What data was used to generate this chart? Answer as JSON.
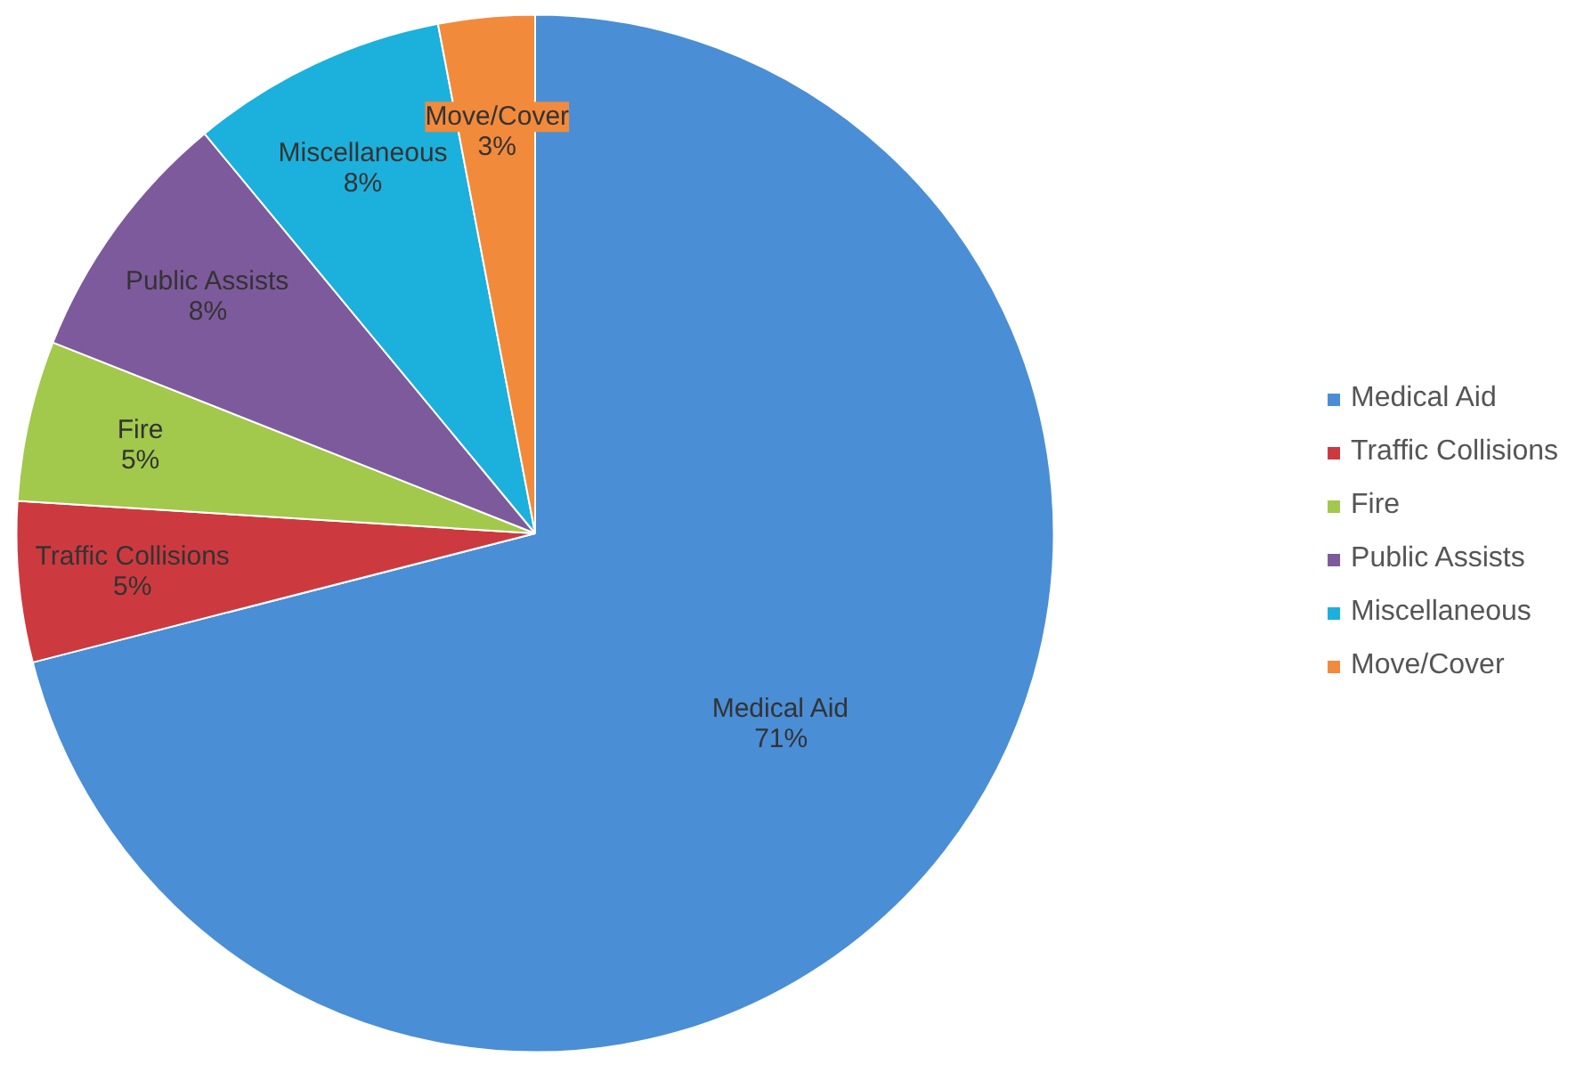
{
  "chart_data": {
    "type": "pie",
    "categories": [
      "Medical Aid",
      "Traffic Collisions",
      "Fire",
      "Public Assists",
      "Miscellaneous",
      "Move/Cover"
    ],
    "values": [
      71,
      5,
      5,
      8,
      8,
      3
    ],
    "colors": [
      "#4a8ed6",
      "#cc3a40",
      "#a2c84c",
      "#7d5a9c",
      "#1cb0dc",
      "#f28a3c"
    ],
    "value_labels": [
      "71%",
      "5%",
      "5%",
      "8%",
      "8%",
      "3%"
    ],
    "legend": "right"
  }
}
